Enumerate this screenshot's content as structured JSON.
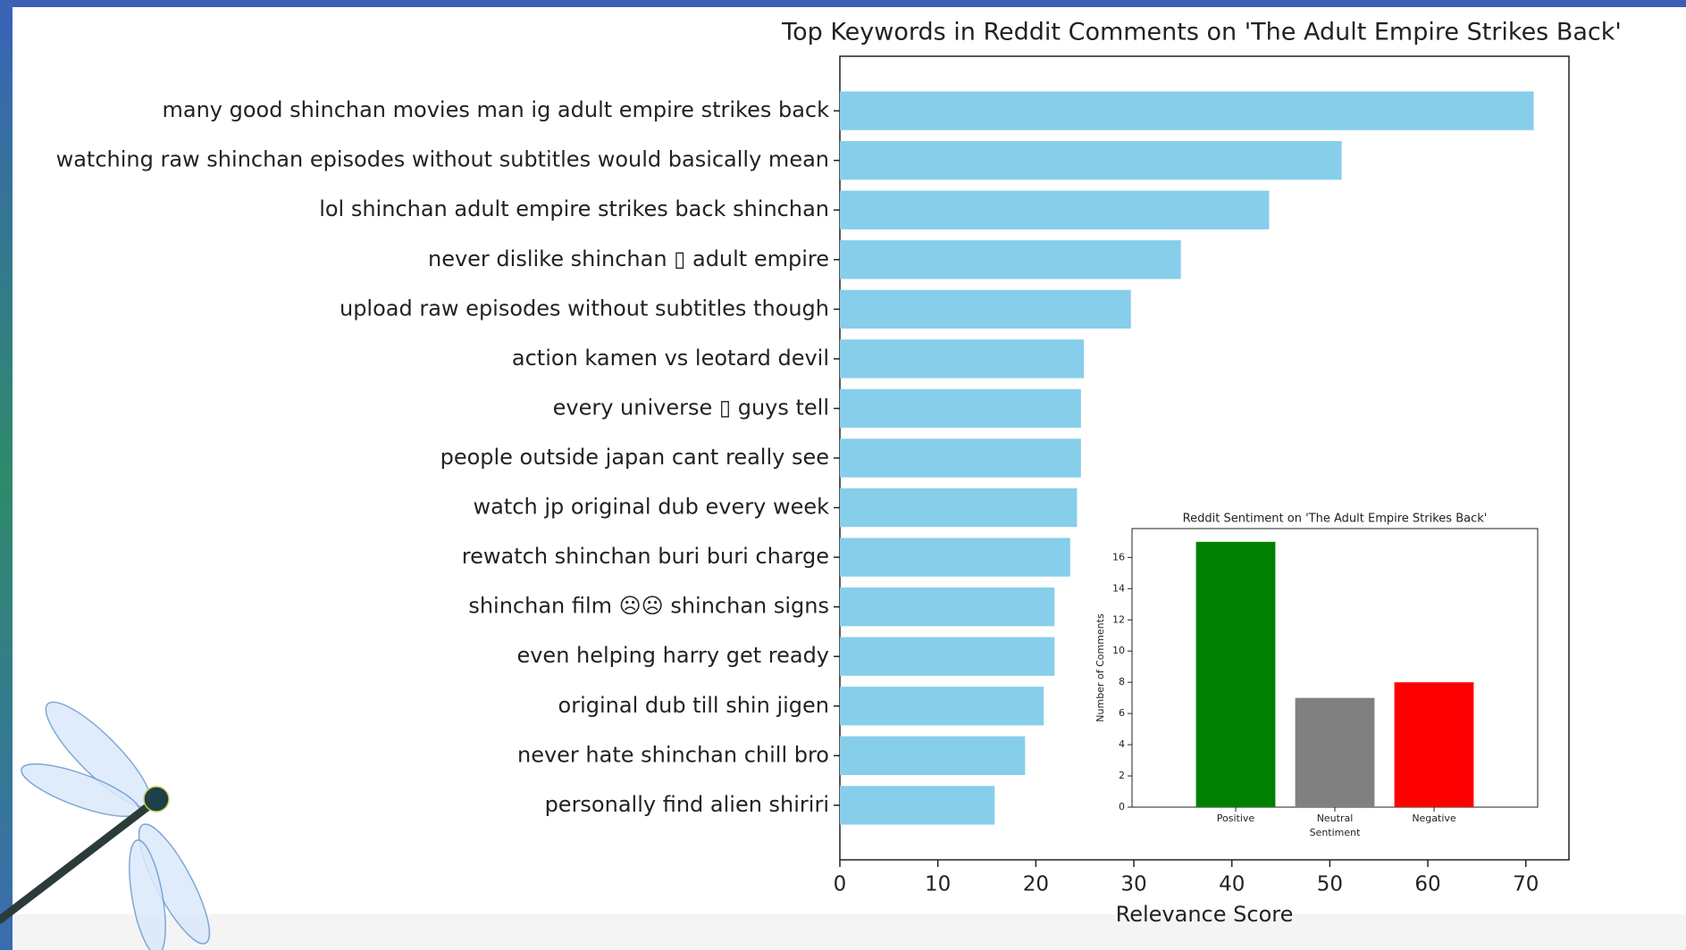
{
  "chart_data": [
    {
      "type": "barh",
      "title": "Top Keywords in Reddit Comments on 'The Adult Empire Strikes Back'",
      "categories": [
        "many good shinchan movies man ig adult empire strikes back",
        "watching raw shinchan episodes without subtitles would basically mean",
        "lol shinchan adult empire strikes back shinchan",
        "never dislike shinchan ▯ adult empire",
        "upload raw episodes without subtitles though",
        "action kamen vs leotard devil",
        "every universe ▯ guys tell",
        "people outside japan cant really see",
        "watch jp original dub every week",
        "rewatch shinchan buri buri charge",
        "shinchan film ☹☹ shinchan signs",
        "even helping harry get ready",
        "original dub till shin jigen",
        "never hate shinchan chill bro",
        "personally find alien shiriri"
      ],
      "values": [
        70.8,
        51.2,
        43.8,
        34.8,
        29.7,
        24.9,
        24.6,
        24.6,
        24.2,
        23.5,
        21.9,
        21.9,
        20.8,
        18.9,
        15.8
      ],
      "color": "#87ceeb",
      "xlim": [
        0,
        74.4
      ],
      "xticks": [
        0,
        10,
        20,
        30,
        40,
        50,
        60,
        70
      ],
      "xlabel": "Relevance Score"
    },
    {
      "type": "bar",
      "title": "Reddit Sentiment on 'The Adult Empire Strikes Back'",
      "categories": [
        "Positive",
        "Neutral",
        "Negative"
      ],
      "values": [
        17,
        7,
        8
      ],
      "colors": [
        "#008000",
        "#808080",
        "#ff0000"
      ],
      "ylim": [
        0,
        17.85
      ],
      "yticks": [
        0,
        2,
        4,
        6,
        8,
        10,
        12,
        14,
        16
      ],
      "xlabel": "Sentiment",
      "ylabel": "Number of Comments"
    }
  ]
}
